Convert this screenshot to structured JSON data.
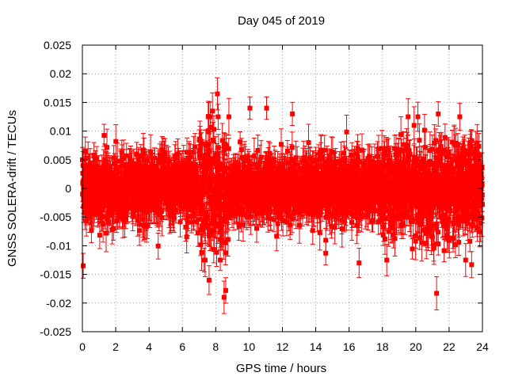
{
  "chart_data": {
    "type": "scatter",
    "title": "Day 045 of 2019",
    "xlabel": "GPS time / hours",
    "ylabel": "GNSS SOLERA-drift / TECUs",
    "xlim": [
      0,
      24
    ],
    "ylim": [
      -0.025,
      0.025
    ],
    "x_ticks": [
      "0",
      "2",
      "4",
      "6",
      "8",
      "10",
      "12",
      "14",
      "16",
      "18",
      "20",
      "22",
      "24"
    ],
    "y_ticks": [
      "0.025",
      "0.02",
      "0.015",
      "0.01",
      "0.005",
      "0",
      "-0.005",
      "-0.01",
      "-0.015",
      "-0.02",
      "-0.025"
    ],
    "grid": true,
    "series": [
      {
        "name": "SOLERA drift",
        "color": "#ff0000",
        "marker": "square",
        "error_bars": true,
        "sampling_interval_hours": 0.00833,
        "baseline_sigma": 0.0028,
        "active_window_sigma_7_to_8_8h": 0.0055,
        "error_half_width_typical": 0.0025,
        "outliers": [
          {
            "x": 0.05,
            "y": -0.0135
          },
          {
            "x": 8.1,
            "y": 0.0165
          },
          {
            "x": 7.8,
            "y": 0.0135
          },
          {
            "x": 7.6,
            "y": -0.016
          },
          {
            "x": 8.5,
            "y": -0.019
          },
          {
            "x": 8.6,
            "y": -0.0178
          },
          {
            "x": 10.05,
            "y": 0.014
          },
          {
            "x": 11.05,
            "y": 0.014
          },
          {
            "x": 12.6,
            "y": 0.013
          },
          {
            "x": 16.6,
            "y": -0.013
          },
          {
            "x": 21.25,
            "y": -0.0183
          },
          {
            "x": 21.35,
            "y": 0.013
          },
          {
            "x": 23.35,
            "y": -0.0133
          },
          {
            "x": 19.9,
            "y": 0.011
          },
          {
            "x": 14.6,
            "y": -0.0113
          }
        ]
      }
    ]
  }
}
